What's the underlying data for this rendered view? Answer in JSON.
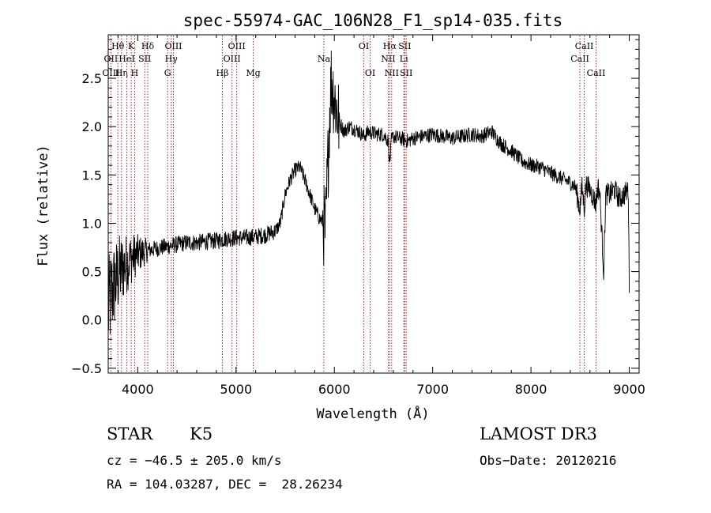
{
  "chart_data": {
    "type": "line",
    "title": "spec-55974-GAC_106N28_F1_sp14-035.fits",
    "xlabel": "Wavelength (Å)",
    "ylabel": "Flux (relative)",
    "xlim": [
      3700,
      9100
    ],
    "ylim": [
      -0.55,
      2.95
    ],
    "xticks": [
      4000,
      5000,
      6000,
      7000,
      8000,
      9000
    ],
    "yticks": [
      -0.5,
      0.0,
      0.5,
      1.0,
      1.5,
      2.0,
      2.5
    ],
    "xtick_labels": [
      "4000",
      "5000",
      "6000",
      "7000",
      "8000",
      "9000"
    ],
    "ytick_labels": [
      "−0.5",
      "0.0",
      "0.5",
      "1.0",
      "1.5",
      "2.0",
      "2.5"
    ],
    "series": [
      {
        "name": "flux",
        "points": [
          [
            3700,
            0.1
          ],
          [
            3740,
            0.3
          ],
          [
            3780,
            0.4
          ],
          [
            3820,
            0.5
          ],
          [
            3860,
            0.55
          ],
          [
            3900,
            0.6
          ],
          [
            3950,
            0.65
          ],
          [
            4000,
            0.68
          ],
          [
            4050,
            0.7
          ],
          [
            4100,
            0.72
          ],
          [
            4200,
            0.74
          ],
          [
            4300,
            0.76
          ],
          [
            4400,
            0.78
          ],
          [
            4500,
            0.8
          ],
          [
            4600,
            0.8
          ],
          [
            4700,
            0.81
          ],
          [
            4800,
            0.82
          ],
          [
            4900,
            0.84
          ],
          [
            5000,
            0.85
          ],
          [
            5100,
            0.85
          ],
          [
            5200,
            0.86
          ],
          [
            5300,
            0.88
          ],
          [
            5400,
            0.92
          ],
          [
            5450,
            1.0
          ],
          [
            5500,
            1.3
          ],
          [
            5550,
            1.45
          ],
          [
            5600,
            1.55
          ],
          [
            5650,
            1.58
          ],
          [
            5700,
            1.45
          ],
          [
            5750,
            1.3
          ],
          [
            5800,
            1.15
          ],
          [
            5850,
            1.05
          ],
          [
            5890,
            1.0
          ],
          [
            5910,
            0.9
          ],
          [
            5930,
            1.5
          ],
          [
            5950,
            2.1
          ],
          [
            5970,
            2.5
          ],
          [
            6000,
            2.3
          ],
          [
            6050,
            2.05
          ],
          [
            6100,
            1.95
          ],
          [
            6150,
            2.0
          ],
          [
            6200,
            1.98
          ],
          [
            6250,
            1.95
          ],
          [
            6300,
            1.9
          ],
          [
            6350,
            1.95
          ],
          [
            6400,
            1.93
          ],
          [
            6450,
            1.92
          ],
          [
            6500,
            1.92
          ],
          [
            6550,
            1.85
          ],
          [
            6563,
            1.6
          ],
          [
            6580,
            1.85
          ],
          [
            6600,
            1.9
          ],
          [
            6650,
            1.88
          ],
          [
            6700,
            1.87
          ],
          [
            6750,
            1.85
          ],
          [
            6800,
            1.88
          ],
          [
            6900,
            1.9
          ],
          [
            7000,
            1.92
          ],
          [
            7100,
            1.9
          ],
          [
            7200,
            1.88
          ],
          [
            7300,
            1.9
          ],
          [
            7400,
            1.92
          ],
          [
            7500,
            1.9
          ],
          [
            7600,
            1.95
          ],
          [
            7650,
            1.88
          ],
          [
            7700,
            1.82
          ],
          [
            7800,
            1.75
          ],
          [
            7900,
            1.65
          ],
          [
            8000,
            1.6
          ],
          [
            8100,
            1.58
          ],
          [
            8200,
            1.52
          ],
          [
            8300,
            1.47
          ],
          [
            8400,
            1.42
          ],
          [
            8450,
            1.38
          ],
          [
            8498,
            1.15
          ],
          [
            8520,
            1.38
          ],
          [
            8542,
            1.15
          ],
          [
            8560,
            1.4
          ],
          [
            8600,
            1.35
          ],
          [
            8662,
            1.2
          ],
          [
            8680,
            1.38
          ],
          [
            8700,
            1.32
          ],
          [
            8740,
            0.5
          ],
          [
            8760,
            1.3
          ],
          [
            8800,
            1.3
          ],
          [
            8850,
            1.35
          ],
          [
            8900,
            1.25
          ],
          [
            8950,
            1.3
          ],
          [
            8990,
            1.35
          ],
          [
            9000,
            0.28
          ]
        ]
      }
    ],
    "line_markers": [
      {
        "label": "Hθ",
        "wl": 3798,
        "row": 1
      },
      {
        "label": "OII",
        "wl": 3727,
        "row": 2
      },
      {
        "label": "OIII",
        "wl": 3727,
        "row": 3
      },
      {
        "label": "Hη",
        "wl": 3835,
        "row": 3
      },
      {
        "label": "HeI",
        "wl": 3889,
        "row": 2
      },
      {
        "label": "K",
        "wl": 3934,
        "row": 1
      },
      {
        "label": "H",
        "wl": 3969,
        "row": 3
      },
      {
        "label": "SII",
        "wl": 4072,
        "row": 2
      },
      {
        "label": "Hδ",
        "wl": 4102,
        "row": 1
      },
      {
        "label": "G",
        "wl": 4304,
        "row": 3
      },
      {
        "label": "OIII",
        "wl": 4363,
        "row": 1
      },
      {
        "label": "Hγ",
        "wl": 4341,
        "row": 2
      },
      {
        "label": "Hβ",
        "wl": 4861,
        "row": 3
      },
      {
        "label": "OIII",
        "wl": 5007,
        "row": 1
      },
      {
        "label": "OIII",
        "wl": 4959,
        "row": 2
      },
      {
        "label": "Mg",
        "wl": 5175,
        "row": 3
      },
      {
        "label": "Na",
        "wl": 5893,
        "row": 2
      },
      {
        "label": "OI",
        "wl": 6300,
        "row": 1
      },
      {
        "label": "OI",
        "wl": 6364,
        "row": 3
      },
      {
        "label": "Hα",
        "wl": 6563,
        "row": 1
      },
      {
        "label": "SII",
        "wl": 6716,
        "row": 1
      },
      {
        "label": "NII",
        "wl": 6548,
        "row": 2
      },
      {
        "label": "Li",
        "wl": 6707,
        "row": 2
      },
      {
        "label": "NII",
        "wl": 6583,
        "row": 3
      },
      {
        "label": "SII",
        "wl": 6731,
        "row": 3
      },
      {
        "label": "CaII",
        "wl": 8542,
        "row": 1
      },
      {
        "label": "CaII",
        "wl": 8498,
        "row": 2
      },
      {
        "label": "CaII",
        "wl": 8662,
        "row": 3
      }
    ]
  },
  "info": {
    "class": "STAR",
    "subclass": "K5",
    "survey": "LAMOST DR3",
    "cz": "cz = −46.5 ± 205.0 km/s",
    "obs_date": "Obs−Date: 20120216",
    "radec": "RA = 104.03287, DEC =  28.26234"
  },
  "colors": {
    "axis": "#000000",
    "spectrum": "#000000",
    "marker_line": "#b22222",
    "marker_label": "#000000",
    "background": "#ffffff"
  }
}
